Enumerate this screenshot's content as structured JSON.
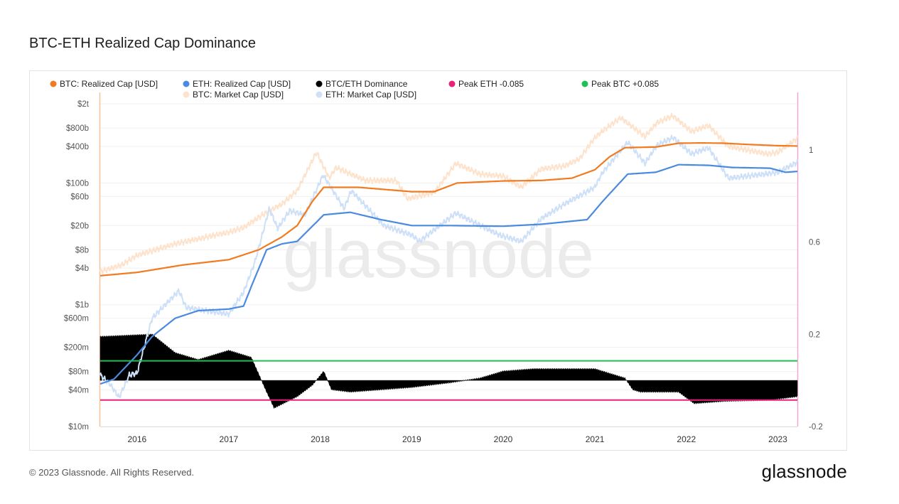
{
  "header": {
    "title": "BTC-ETH Realized Cap Dominance"
  },
  "footer": {
    "copyright": "© 2023 Glassnode. All Rights Reserved.",
    "brand": "glassnode"
  },
  "watermark": "glassnode",
  "chart_data": {
    "type": "line",
    "title": "BTC-ETH Realized Cap Dominance",
    "legend_position": "top-left",
    "grid": true,
    "legend": [
      {
        "label": "BTC: Realized Cap [USD]",
        "color": "#f07b20"
      },
      {
        "label": "ETH: Realized Cap [USD]",
        "color": "#4a8ae0"
      },
      {
        "label": "BTC/ETH Dominance",
        "color": "#000000"
      },
      {
        "label": "Peak ETH -0.085",
        "color": "#e8207a"
      },
      {
        "label": "Peak BTC +0.085",
        "color": "#1fbf55"
      },
      {
        "label": "BTC: Market Cap [USD]",
        "color": "#fde2cc"
      },
      {
        "label": "ETH: Market Cap [USD]",
        "color": "#cde0f7"
      }
    ],
    "x_range": [
      "2015-08-07",
      "2023-03-20"
    ],
    "x_ticks": [
      "2016",
      "2017",
      "2018",
      "2019",
      "2020",
      "2021",
      "2022",
      "2023"
    ],
    "y_left": {
      "scale": "log",
      "range": [
        10000000,
        2000000000000
      ],
      "ticks": [
        {
          "label": "$2t",
          "value": 2000000000000
        },
        {
          "label": "$800b",
          "value": 800000000000
        },
        {
          "label": "$400b",
          "value": 400000000000
        },
        {
          "label": "$100b",
          "value": 100000000000
        },
        {
          "label": "$60b",
          "value": 60000000000
        },
        {
          "label": "$20b",
          "value": 20000000000
        },
        {
          "label": "$8b",
          "value": 8000000000
        },
        {
          "label": "$4b",
          "value": 4000000000
        },
        {
          "label": "$1b",
          "value": 1000000000
        },
        {
          "label": "$600m",
          "value": 600000000
        },
        {
          "label": "$200m",
          "value": 200000000
        },
        {
          "label": "$80m",
          "value": 80000000
        },
        {
          "label": "$40m",
          "value": 40000000
        },
        {
          "label": "$10m",
          "value": 10000000
        }
      ]
    },
    "y_right": {
      "scale": "linear",
      "range": [
        -0.2,
        1.2
      ],
      "ticks": [
        {
          "label": "1",
          "value": 1
        },
        {
          "label": "0.6",
          "value": 0.6
        },
        {
          "label": "0.2",
          "value": 0.2
        },
        {
          "label": "-0.2",
          "value": -0.2
        }
      ]
    },
    "reference_lines": [
      {
        "name": "Peak BTC +0.085",
        "value": 0.085,
        "color": "#1fbf55"
      },
      {
        "name": "Peak ETH -0.085",
        "value": -0.085,
        "color": "#e8207a"
      }
    ],
    "series": [
      {
        "name": "BTC: Market Cap [USD]",
        "axis": "left",
        "color": "#fde2cc",
        "x": [
          "2015-08-07",
          "2015-11-01",
          "2016-01-01",
          "2016-06-01",
          "2016-12-31",
          "2017-03-01",
          "2017-05-15",
          "2017-08-01",
          "2017-10-01",
          "2017-12-17",
          "2018-02-06",
          "2018-03-05",
          "2018-06-30",
          "2018-11-01",
          "2018-12-15",
          "2019-04-01",
          "2019-06-26",
          "2019-10-01",
          "2020-01-01",
          "2020-03-13",
          "2020-06-01",
          "2020-09-01",
          "2020-11-01",
          "2020-12-31",
          "2021-02-01",
          "2021-04-14",
          "2021-07-20",
          "2021-09-06",
          "2021-11-08",
          "2022-01-22",
          "2022-03-30",
          "2022-06-18",
          "2022-11-21",
          "2023-01-01",
          "2023-03-20"
        ],
        "y": [
          3500000000,
          4500000000,
          6500000000,
          10000000000,
          15500000000,
          18500000000,
          30000000000,
          45000000000,
          75000000000,
          320000000000,
          120000000000,
          180000000000,
          110000000000,
          110000000000,
          55000000000,
          70000000000,
          210000000000,
          140000000000,
          130000000000,
          85000000000,
          170000000000,
          190000000000,
          250000000000,
          550000000000,
          720000000000,
          1180000000000,
          580000000000,
          980000000000,
          1270000000000,
          700000000000,
          880000000000,
          400000000000,
          300000000000,
          320000000000,
          540000000000
        ]
      },
      {
        "name": "ETH: Market Cap [USD]",
        "axis": "left",
        "color": "#cde0f7",
        "x": [
          "2015-08-07",
          "2015-09-15",
          "2015-10-21",
          "2015-12-01",
          "2016-01-01",
          "2016-03-01",
          "2016-06-16",
          "2016-07-15",
          "2016-12-31",
          "2017-03-01",
          "2017-04-15",
          "2017-06-12",
          "2017-07-15",
          "2017-09-01",
          "2017-11-01",
          "2018-01-13",
          "2018-04-06",
          "2018-05-05",
          "2018-09-12",
          "2019-01-01",
          "2019-02-01",
          "2019-06-26",
          "2019-12-17",
          "2020-03-13",
          "2020-06-01",
          "2020-09-01",
          "2020-12-31",
          "2021-02-01",
          "2021-05-12",
          "2021-07-20",
          "2021-09-06",
          "2021-11-10",
          "2022-01-22",
          "2022-03-30",
          "2022-06-18",
          "2022-11-09",
          "2023-01-01",
          "2023-03-20"
        ],
        "y": [
          70000000,
          50000000,
          30000000,
          70000000,
          75000000,
          600000000,
          1700000000,
          900000000,
          700000000,
          1600000000,
          5000000000,
          38000000000,
          18000000000,
          35000000000,
          30000000000,
          135000000000,
          38000000000,
          75000000000,
          20000000000,
          14000000000,
          11000000000,
          32000000000,
          14000000000,
          11000000000,
          26000000000,
          45000000000,
          85000000000,
          150000000000,
          470000000000,
          210000000000,
          420000000000,
          560000000000,
          300000000000,
          380000000000,
          120000000000,
          140000000000,
          150000000000,
          220000000000
        ]
      },
      {
        "name": "BTC: Realized Cap [USD]",
        "axis": "left",
        "color": "#f07b20",
        "x": [
          "2015-08-07",
          "2016-01-01",
          "2016-07-01",
          "2017-01-01",
          "2017-05-01",
          "2017-08-01",
          "2017-10-01",
          "2017-12-01",
          "2018-01-15",
          "2018-06-01",
          "2019-01-01",
          "2019-04-01",
          "2019-07-01",
          "2020-01-01",
          "2020-06-01",
          "2020-10-01",
          "2021-01-01",
          "2021-03-01",
          "2021-05-01",
          "2021-09-01",
          "2021-12-01",
          "2022-03-01",
          "2022-06-01",
          "2022-09-01",
          "2023-01-01",
          "2023-03-20"
        ],
        "y": [
          3000000000,
          3400000000,
          4500000000,
          5500000000,
          8000000000,
          13000000000,
          20000000000,
          50000000000,
          85000000000,
          85000000000,
          72000000000,
          72000000000,
          100000000000,
          108000000000,
          110000000000,
          120000000000,
          165000000000,
          270000000000,
          380000000000,
          390000000000,
          450000000000,
          455000000000,
          450000000000,
          430000000000,
          410000000000,
          405000000000
        ]
      },
      {
        "name": "ETH: Realized Cap [USD]",
        "axis": "left",
        "color": "#4a8ae0",
        "x": [
          "2015-08-07",
          "2015-10-01",
          "2016-01-01",
          "2016-03-01",
          "2016-06-01",
          "2016-09-01",
          "2017-01-01",
          "2017-03-01",
          "2017-04-01",
          "2017-06-01",
          "2017-08-01",
          "2017-10-01",
          "2018-01-15",
          "2018-05-01",
          "2018-09-01",
          "2019-01-01",
          "2019-06-01",
          "2020-01-01",
          "2020-06-01",
          "2020-12-01",
          "2021-02-01",
          "2021-05-12",
          "2021-09-01",
          "2021-12-01",
          "2022-04-01",
          "2022-07-01",
          "2022-12-01",
          "2023-02-01",
          "2023-03-20"
        ],
        "y": [
          50000000,
          60000000,
          150000000,
          300000000,
          600000000,
          800000000,
          850000000,
          950000000,
          2000000000,
          8000000000,
          10000000000,
          11000000000,
          30000000000,
          33000000000,
          25000000000,
          20000000000,
          20000000000,
          19500000000,
          21000000000,
          25000000000,
          50000000000,
          140000000000,
          150000000000,
          200000000000,
          195000000000,
          180000000000,
          175000000000,
          150000000000,
          155000000000
        ]
      },
      {
        "name": "BTC/ETH Dominance",
        "axis": "right",
        "color": "#000000",
        "x": [
          "2015-08-07",
          "2016-03-01",
          "2016-06-01",
          "2016-09-01",
          "2017-01-01",
          "2017-04-01",
          "2017-06-01",
          "2017-07-01",
          "2017-10-01",
          "2017-12-01",
          "2018-01-15",
          "2018-02-15",
          "2018-05-01",
          "2019-01-01",
          "2019-06-01",
          "2019-10-01",
          "2020-01-01",
          "2020-05-01",
          "2021-01-01",
          "2021-05-01",
          "2021-06-01",
          "2021-07-01",
          "2021-12-01",
          "2022-02-01",
          "2022-06-01",
          "2022-12-01",
          "2023-03-20"
        ],
        "y": [
          0.19,
          0.2,
          0.12,
          0.09,
          0.13,
          0.1,
          -0.05,
          -0.12,
          -0.07,
          -0.02,
          0.04,
          -0.04,
          -0.05,
          -0.03,
          -0.01,
          0.01,
          0.04,
          0.05,
          0.05,
          0.01,
          -0.04,
          -0.05,
          -0.05,
          -0.1,
          -0.09,
          -0.085,
          -0.07
        ]
      }
    ]
  }
}
